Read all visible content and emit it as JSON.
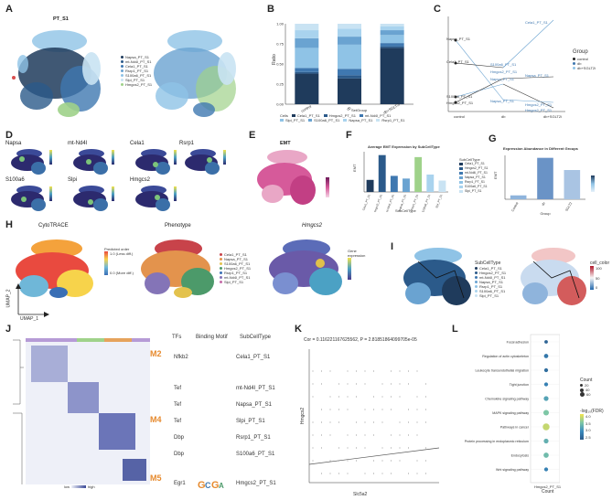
{
  "panels": {
    "A": {
      "label": "A",
      "title": "PT_S1",
      "legend": [
        "Napsa_PT_S1",
        "mt-Nd4l_PT_S1",
        "Cela1_PT_S1",
        "Rsrp1_PT_S1",
        "S100a6_PT_S1",
        "Slpi_PT_S1",
        "Hmgcs2_PT_S1"
      ],
      "numlegend": [
        "0",
        "1",
        "2",
        "3",
        "4",
        "5",
        "6",
        "7",
        "8",
        "9",
        "10",
        "11"
      ]
    },
    "B": {
      "label": "B",
      "ylabel": "Ratio",
      "xlabel": "SetGroup",
      "legend_title": "Cells",
      "legend": [
        "Cela1_PT_S1",
        "Hmgcs2_PT_S1",
        "mt-Nd4l_PT_S1",
        "Slpi_PT_S1",
        "S100a6_PT_S1",
        "Napsa_PT_S1",
        "Rsrp1_PT_S1"
      ]
    },
    "C": {
      "label": "C",
      "group_title": "Group",
      "group_legend": [
        "control",
        "db",
        "db+SGLT2i"
      ],
      "xticks": [
        "control",
        "db",
        "db+SGLT2i"
      ],
      "left_labels": [
        "Napsa_PT_S1",
        "Cela1_PT_S1",
        "S100a6_PT_S1",
        "Hmgcs2_PT_S1"
      ],
      "mid_labels": [
        "S100a6_PT_S1",
        "Hmgcs2_PT_S1",
        "Napsa_PT_S1",
        "Napsa_PT_S1"
      ],
      "right_labels": [
        "Cela1_PT_S1",
        "Napsa_PT_S1",
        "Hmgcs2_PT_S1",
        "Hmgcs2_PT_S1"
      ]
    },
    "D": {
      "label": "D",
      "genes": [
        "Napsa",
        "mt-Nd4l",
        "Cela1",
        "Rsrp1",
        "S100a6",
        "Slpi",
        "Hmgcs2"
      ]
    },
    "E": {
      "label": "E",
      "title": "EMT"
    },
    "F": {
      "label": "F",
      "title": "Average EMT Expression by SubCellType",
      "xlabel": "SubCellType",
      "ylabel": "EMT",
      "legend_title": "SubCellType"
    },
    "G": {
      "label": "G",
      "title": "Expression Abundance in Different Groups",
      "xlabel": "Group",
      "ylabel": "EMT",
      "xticks": [
        "Control",
        "db",
        "SGLT2"
      ]
    },
    "H": {
      "label": "H",
      "titles": [
        "CytoTRACE",
        "Phenotype",
        "Hmgcs2"
      ],
      "cyto_legend_title": "Predicted order",
      "cyto_legend": [
        "1.0 (Less diff.)",
        "0.0 (More diff.)"
      ],
      "pheno_legend": [
        "Cela1_PT_S1",
        "Napsa_PT_S1",
        "S100a6_PT_S1",
        "Hmgcs2_PT_S1",
        "Rsrp1_PT_S1",
        "mt-Nd4l_PT_S1",
        "Slpi_PT_S1"
      ],
      "gene_legend_title": "Gene expression",
      "axis_x": "UMAP_1",
      "axis_y": "UMAP_2"
    },
    "I": {
      "label": "I",
      "legend_title": "SubCellType",
      "legend": [
        "Cela1_PT_S1",
        "Hmgcs2_PT_S1",
        "mt-Nd4l_PT_S1",
        "Napsa_PT_S1",
        "Rsrp1_PT_S1",
        "S100a6_PT_S1",
        "Slpi_PT_S1"
      ],
      "color_title": "cell_color",
      "color_ticks": [
        "100",
        "50",
        "0"
      ]
    },
    "J": {
      "label": "J",
      "headers": [
        "TFs",
        "Binding Motif",
        "SubCellType"
      ],
      "rows": [
        {
          "tf": "Nfkb2",
          "sub": "Cela1_PT_S1"
        },
        {
          "tf": "Tef",
          "sub": "mt-Nd4l_PT_S1"
        },
        {
          "tf": "Tef",
          "sub": "Napsa_PT_S1"
        },
        {
          "tf": "Tef",
          "sub": "Slpi_PT_S1"
        },
        {
          "tf": "Dbp",
          "sub": "Rsrp1_PT_S1"
        },
        {
          "tf": "Dbp",
          "sub": "S100a6_PT_S1"
        },
        {
          "tf": "Egr1",
          "sub": "Hmgcs2_PT_S1"
        }
      ],
      "modules": [
        "M2",
        "M4",
        "M5"
      ],
      "scale": [
        "low",
        "high"
      ]
    },
    "K": {
      "label": "K",
      "title": "Cor = 0.116221167625562, P = 2.81851864099705e-05",
      "xlabel": "Slc5a2",
      "ylabel": "Hmgcs2"
    },
    "L": {
      "label": "L",
      "pathways": [
        "Focal adhesion",
        "Regulation of actin cytoskeleton",
        "Leukocyte transendothelial migration",
        "Tight junction",
        "Chemokine signaling pathway",
        "MAPK signaling pathway",
        "Pathways in cancer",
        "Protein processing in endoplasmic reticulum",
        "Endocytosis",
        "Wnt signaling pathway"
      ],
      "xtick": "Hmgcs2_PT_S1",
      "xlabel": "Count",
      "count_title": "Count",
      "count_ticks": [
        "20",
        "40",
        "60"
      ],
      "fdr_title": "-log₁₀(FDR)",
      "fdr_ticks": [
        "4.0",
        "3.5",
        "3.0",
        "2.5"
      ]
    }
  },
  "chart_data": [
    {
      "type": "bar",
      "panel": "B",
      "title": "",
      "xlabel": "SetGroup",
      "ylabel": "Ratio",
      "categories": [
        "control",
        "db",
        "db+SGLT2i"
      ],
      "ylim": [
        0,
        1
      ],
      "series": [
        {
          "name": "Cela1_PT_S1",
          "values": [
            0.38,
            0.32,
            0.7
          ]
        },
        {
          "name": "Hmgcs2_PT_S1",
          "values": [
            0.02,
            0.04,
            0.02
          ]
        },
        {
          "name": "mt-Nd4l_PT_S1",
          "values": [
            0.05,
            0.08,
            0.04
          ]
        },
        {
          "name": "Slpi_PT_S1",
          "values": [
            0.25,
            0.3,
            0.1
          ]
        },
        {
          "name": "S100a6_PT_S1",
          "values": [
            0.12,
            0.1,
            0.06
          ]
        },
        {
          "name": "Napsa_PT_S1",
          "values": [
            0.1,
            0.1,
            0.05
          ]
        },
        {
          "name": "Rsrp1_PT_S1",
          "values": [
            0.08,
            0.06,
            0.03
          ]
        }
      ]
    },
    {
      "type": "bar",
      "panel": "F",
      "title": "Average EMT Expression by SubCellType",
      "xlabel": "SubCellType",
      "ylabel": "EMT",
      "categories": [
        "Cela1_PT_S1",
        "Hmgcs2_PT_S1",
        "mt-Nd4l_PT_S1",
        "Napsa_PT_S1",
        "Rsrp1_PT_S1",
        "S100a6_PT_S1",
        "Slpi_PT_S1"
      ],
      "values": [
        0.18,
        0.55,
        0.24,
        0.2,
        0.52,
        0.26,
        0.17
      ],
      "ylim": [
        0,
        0.6
      ]
    },
    {
      "type": "bar",
      "panel": "G",
      "title": "Expression Abundance in Different Groups",
      "xlabel": "Group",
      "ylabel": "EMT",
      "categories": [
        "Control",
        "db",
        "SGLT2"
      ],
      "values": [
        0.08,
        0.85,
        0.6
      ],
      "ylim": [
        0,
        0.9
      ]
    },
    {
      "type": "scatter",
      "panel": "L",
      "xlabel": "Count",
      "categories": [
        "Hmgcs2_PT_S1"
      ],
      "series": [
        {
          "name": "Focal adhesion",
          "count": 20,
          "fdr": 2.6
        },
        {
          "name": "Regulation of actin cytoskeleton",
          "count": 30,
          "fdr": 2.8
        },
        {
          "name": "Leukocyte transendothelial migration",
          "count": 25,
          "fdr": 2.7
        },
        {
          "name": "Tight junction",
          "count": 25,
          "fdr": 2.9
        },
        {
          "name": "Chemokine signaling pathway",
          "count": 35,
          "fdr": 3.2
        },
        {
          "name": "MAPK signaling pathway",
          "count": 45,
          "fdr": 3.5
        },
        {
          "name": "Pathways in cancer",
          "count": 60,
          "fdr": 3.8
        },
        {
          "name": "Protein processing in endoplasmic reticulum",
          "count": 35,
          "fdr": 3.3
        },
        {
          "name": "Endocytosis",
          "count": 40,
          "fdr": 3.4
        },
        {
          "name": "Wnt signaling pathway",
          "count": 25,
          "fdr": 2.9
        }
      ]
    }
  ],
  "colors": {
    "dark": "#1f3b5c",
    "mid": "#3f78b0",
    "light": "#8fc3e6",
    "pale": "#c9e3f3",
    "green": "#9fd28a",
    "pink": "#d65a9a",
    "orange": "#e68a2e"
  }
}
